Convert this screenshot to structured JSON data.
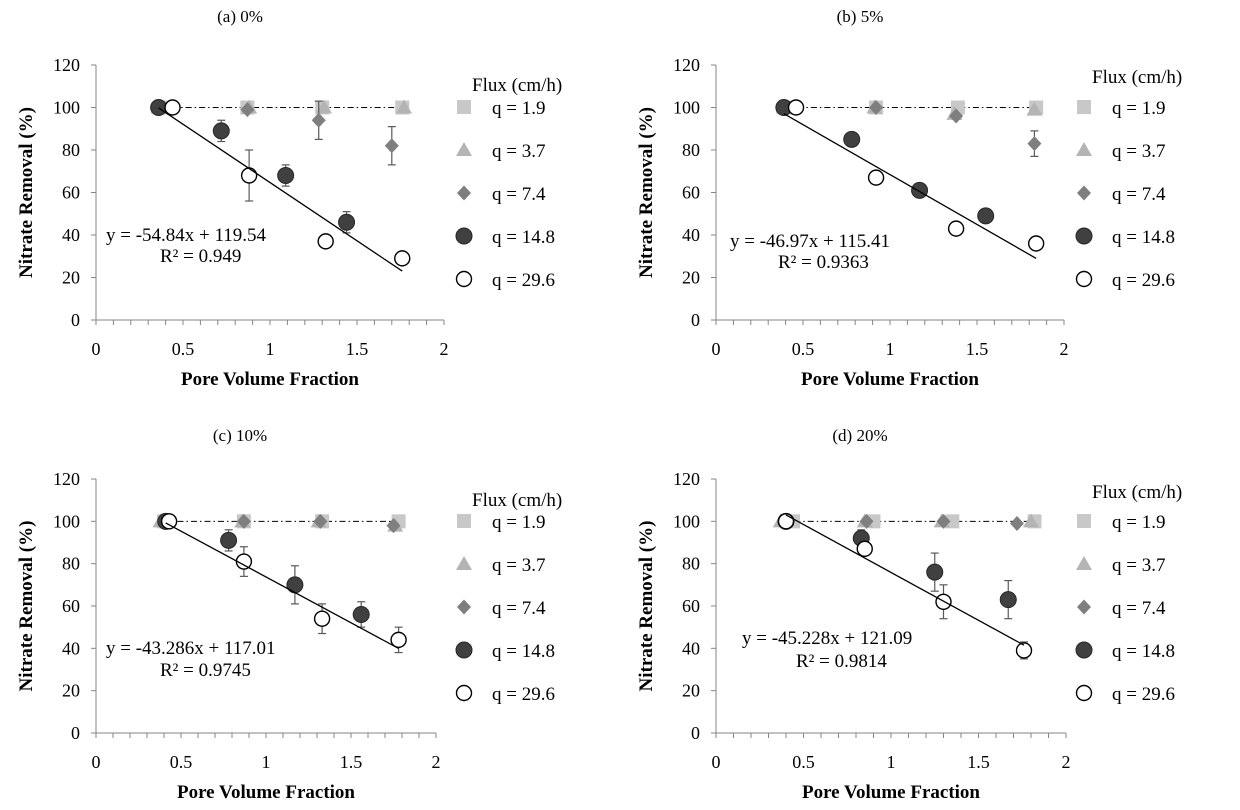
{
  "figure": {
    "legend_title": "Flux (cm/h)",
    "colors": {
      "q1_9": "#c8c8c8",
      "q3_7": "#b4b4b4",
      "q7_4": "#7f7f7f",
      "q14_8": "#404040",
      "q29_6": "#ffffff",
      "line": "#000000"
    }
  },
  "chart_data": [
    {
      "type": "scatter",
      "title": "(a) 0%",
      "xlabel": "Pore Volume Fraction",
      "ylabel": "Nitrate Removal (%)",
      "xlim": [
        0,
        2
      ],
      "ylim": [
        0,
        120
      ],
      "xticks": [
        "0",
        "0.5",
        "1",
        "1.5",
        "2"
      ],
      "yticks": [
        "0",
        "20",
        "40",
        "60",
        "80",
        "100",
        "120"
      ],
      "legend_position": "right",
      "series": [
        {
          "name": "q = 1.9",
          "marker": "square",
          "x": [
            0.37,
            0.87,
            1.3,
            1.76
          ],
          "y": [
            100,
            100,
            100,
            100
          ],
          "err": [
            0,
            0,
            0,
            0
          ]
        },
        {
          "name": "q = 3.7",
          "marker": "triangle",
          "x": [
            0.36,
            0.88,
            1.31,
            1.77
          ],
          "y": [
            100,
            100,
            100,
            100
          ],
          "err": [
            0,
            0,
            0,
            0
          ]
        },
        {
          "name": "q = 7.4",
          "marker": "diamond",
          "x": [
            0.45,
            0.87,
            1.28,
            1.7
          ],
          "y": [
            100,
            99,
            94,
            82
          ],
          "err": [
            0,
            0,
            9,
            9
          ]
        },
        {
          "name": "q = 14.8",
          "marker": "filled-circle",
          "x": [
            0.36,
            0.72,
            1.09,
            1.44
          ],
          "y": [
            100,
            89,
            68,
            46
          ],
          "err": [
            0,
            5,
            5,
            5
          ]
        },
        {
          "name": "q = 29.6",
          "marker": "open-circle",
          "x": [
            0.44,
            0.88,
            1.32,
            1.76
          ],
          "y": [
            100,
            68,
            37,
            29
          ],
          "err": [
            0,
            12,
            3,
            3
          ]
        }
      ],
      "trendline": {
        "slope": -54.84,
        "intercept": 119.54,
        "x_range": [
          0.36,
          1.76
        ],
        "equation": "y = -54.84x + 119.54",
        "r2": "R² = 0.949"
      },
      "refline": {
        "y": 100,
        "x_range": [
          0.36,
          1.78
        ]
      }
    },
    {
      "type": "scatter",
      "title": "(b) 5%",
      "xlabel": "Pore Volume Fraction",
      "ylabel": "Nitrate Removal (%)",
      "xlim": [
        0,
        2
      ],
      "ylim": [
        0,
        120
      ],
      "xticks": [
        "0",
        "0.5",
        "1",
        "1.5",
        "2"
      ],
      "yticks": [
        "0",
        "20",
        "40",
        "60",
        "80",
        "100",
        "120"
      ],
      "legend_position": "right",
      "series": [
        {
          "name": "q = 1.9",
          "marker": "square",
          "x": [
            0.4,
            0.92,
            1.39,
            1.84
          ],
          "y": [
            100,
            100,
            100,
            100
          ],
          "err": [
            0,
            0,
            0,
            0
          ]
        },
        {
          "name": "q = 3.7",
          "marker": "triangle",
          "x": [
            0.39,
            0.91,
            1.37,
            1.83
          ],
          "y": [
            100,
            100,
            97,
            99
          ],
          "err": [
            0,
            0,
            0,
            0
          ]
        },
        {
          "name": "q = 7.4",
          "marker": "diamond",
          "x": [
            0.46,
            0.92,
            1.38,
            1.83
          ],
          "y": [
            100,
            100,
            96,
            83
          ],
          "err": [
            0,
            0,
            0,
            6
          ]
        },
        {
          "name": "q = 14.8",
          "marker": "filled-circle",
          "x": [
            0.39,
            0.78,
            1.17,
            1.55
          ],
          "y": [
            100,
            85,
            61,
            49
          ],
          "err": [
            0,
            0,
            3,
            3
          ]
        },
        {
          "name": "q = 29.6",
          "marker": "open-circle",
          "x": [
            0.46,
            0.92,
            1.38,
            1.84
          ],
          "y": [
            100,
            67,
            43,
            36
          ],
          "err": [
            0,
            3,
            3,
            2
          ]
        }
      ],
      "trendline": {
        "slope": -46.97,
        "intercept": 115.41,
        "x_range": [
          0.39,
          1.84
        ],
        "equation": "y = -46.97x + 115.41",
        "r2": "R² = 0.9363"
      },
      "refline": {
        "y": 100,
        "x_range": [
          0.39,
          1.86
        ]
      }
    },
    {
      "type": "scatter",
      "title": "(c) 10%",
      "xlabel": "Pore Volume Fraction",
      "ylabel": "Nitrate Removal (%)",
      "xlim": [
        0,
        2
      ],
      "ylim": [
        0,
        120
      ],
      "xticks": [
        "0",
        "0.5",
        "1",
        "1.5",
        "2"
      ],
      "yticks": [
        "0",
        "20",
        "40",
        "60",
        "80",
        "100",
        "120"
      ],
      "legend_position": "right",
      "series": [
        {
          "name": "q = 1.9",
          "marker": "square",
          "x": [
            0.4,
            0.87,
            1.33,
            1.78
          ],
          "y": [
            100,
            100,
            100,
            100
          ],
          "err": [
            0,
            0,
            0,
            0
          ]
        },
        {
          "name": "q = 3.7",
          "marker": "triangle",
          "x": [
            0.38,
            0.86,
            1.31,
            1.76
          ],
          "y": [
            100,
            100,
            100,
            98
          ],
          "err": [
            0,
            0,
            0,
            0
          ]
        },
        {
          "name": "q = 7.4",
          "marker": "diamond",
          "x": [
            0.43,
            0.87,
            1.32,
            1.75
          ],
          "y": [
            100,
            100,
            100,
            98
          ],
          "err": [
            0,
            0,
            0,
            0
          ]
        },
        {
          "name": "q = 14.8",
          "marker": "filled-circle",
          "x": [
            0.41,
            0.78,
            1.17,
            1.56
          ],
          "y": [
            100,
            91,
            70,
            56
          ],
          "err": [
            0,
            5,
            9,
            6
          ]
        },
        {
          "name": "q = 29.6",
          "marker": "open-circle",
          "x": [
            0.43,
            0.87,
            1.33,
            1.78
          ],
          "y": [
            100,
            81,
            54,
            44
          ],
          "err": [
            0,
            7,
            7,
            6
          ]
        }
      ],
      "trendline": {
        "slope": -43.286,
        "intercept": 117.01,
        "x_range": [
          0.41,
          1.78
        ],
        "equation": "y = -43.286x + 117.01",
        "r2": "R² = 0.9745"
      },
      "refline": {
        "y": 100,
        "x_range": [
          0.4,
          1.8
        ]
      }
    },
    {
      "type": "scatter",
      "title": "(d) 20%",
      "xlabel": "Pore Volume Fraction",
      "ylabel": "Nitrate Removal (%)",
      "xlim": [
        0,
        2
      ],
      "ylim": [
        0,
        120
      ],
      "xticks": [
        "0",
        "0.5",
        "1",
        "1.5",
        "2"
      ],
      "yticks": [
        "0",
        "20",
        "40",
        "60",
        "80",
        "100",
        "120"
      ],
      "legend_position": "right",
      "series": [
        {
          "name": "q = 1.9",
          "marker": "square",
          "x": [
            0.44,
            0.9,
            1.35,
            1.82
          ],
          "y": [
            100,
            100,
            100,
            100
          ],
          "err": [
            0,
            0,
            0,
            0
          ]
        },
        {
          "name": "q = 3.7",
          "marker": "triangle",
          "x": [
            0.37,
            0.85,
            1.29,
            1.8
          ],
          "y": [
            100,
            100,
            100,
            100
          ],
          "err": [
            0,
            0,
            0,
            0
          ]
        },
        {
          "name": "q = 7.4",
          "marker": "diamond",
          "x": [
            0.41,
            0.86,
            1.3,
            1.72
          ],
          "y": [
            100,
            100,
            100,
            99
          ],
          "err": [
            0,
            0,
            0,
            0
          ]
        },
        {
          "name": "q = 14.8",
          "marker": "filled-circle",
          "x": [
            0.4,
            0.83,
            1.25,
            1.67
          ],
          "y": [
            100,
            92,
            76,
            63
          ],
          "err": [
            0,
            4,
            9,
            9
          ]
        },
        {
          "name": "q = 29.6",
          "marker": "open-circle",
          "x": [
            0.4,
            0.85,
            1.3,
            1.76
          ],
          "y": [
            100,
            87,
            62,
            39
          ],
          "err": [
            0,
            3,
            8,
            4
          ]
        }
      ],
      "trendline": {
        "slope": -45.228,
        "intercept": 121.09,
        "x_range": [
          0.4,
          1.76
        ],
        "equation": "y = -45.228x + 121.09",
        "r2": "R² = 0.9814"
      },
      "refline": {
        "y": 100,
        "x_range": [
          0.37,
          1.84
        ]
      }
    }
  ]
}
